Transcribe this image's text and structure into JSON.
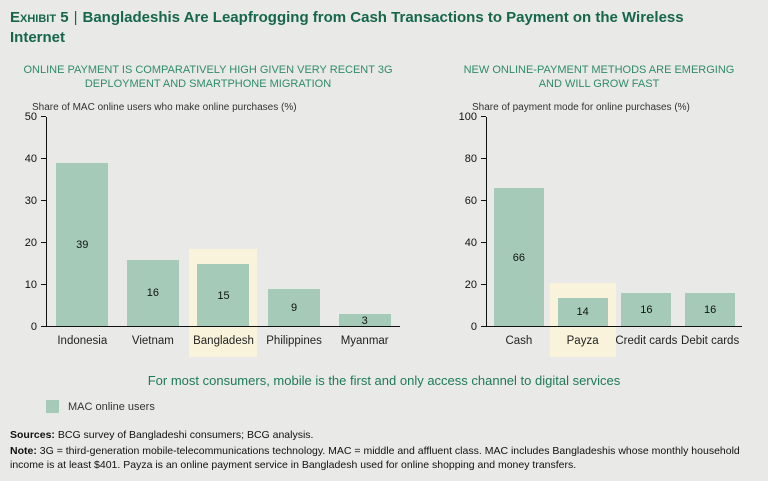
{
  "header": {
    "exhibit_label": "Exhibit 5",
    "separator": "|",
    "title": "Bangladeshis Are Leapfrogging from Cash Transactions to Payment on the Wireless Internet"
  },
  "colors": {
    "bar": "#a5cbb8",
    "highlight": "#faf3db",
    "header_green": "#15664c",
    "title_green": "#2f8c69",
    "background": "#e9e9e7"
  },
  "chart_data": [
    {
      "type": "bar",
      "title": "ONLINE PAYMENT IS COMPARATIVELY HIGH GIVEN VERY RECENT 3G DEPLOYMENT AND SMARTPHONE MIGRATION",
      "ylabel": "Share of MAC online users who make online purchases (%)",
      "categories": [
        "Indonesia",
        "Vietnam",
        "Bangladesh",
        "Philippines",
        "Myanmar"
      ],
      "values": [
        39,
        16,
        15,
        9,
        3
      ],
      "highlighted_category": "Bangladesh",
      "ylim": [
        0,
        50
      ],
      "yticks": [
        0,
        10,
        20,
        30,
        40,
        50
      ],
      "grid": false,
      "legend_position": "below"
    },
    {
      "type": "bar",
      "title": "NEW ONLINE-PAYMENT METHODS ARE EMERGING AND WILL GROW FAST",
      "ylabel": "Share of payment mode for online purchases (%)",
      "categories": [
        "Cash",
        "Payza",
        "Credit cards",
        "Debit cards"
      ],
      "values": [
        66,
        14,
        16,
        16
      ],
      "highlighted_category": "Payza",
      "ylim": [
        0,
        100
      ],
      "yticks": [
        0,
        20,
        40,
        60,
        80,
        100
      ],
      "grid": false,
      "legend_position": "below"
    }
  ],
  "callout": {
    "text": "For most consumers, mobile is the first and only access channel to digital services"
  },
  "legend": {
    "label": "MAC online users",
    "color": "#a5cbb8"
  },
  "footer": {
    "sources_label": "Sources:",
    "sources_text": "BCG survey of Bangladeshi consumers; BCG analysis.",
    "note_label": "Note:",
    "note_text": "3G = third-generation mobile-telecommunications technology. MAC = middle and affluent class. MAC includes Bangladeshis whose monthly household income is at least $401. Payza is an online payment service in Bangladesh used for online shopping and money transfers."
  }
}
